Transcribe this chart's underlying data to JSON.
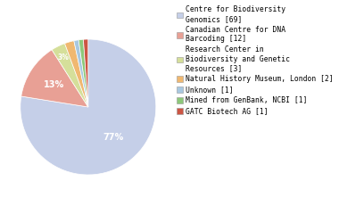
{
  "labels": [
    "Centre for Biodiversity\nGenomics [69]",
    "Canadian Centre for DNA\nBarcoding [12]",
    "Research Center in\nBiodiversity and Genetic\nResources [3]",
    "Natural History Museum, London [2]",
    "Unknown [1]",
    "Mined from GenBank, NCBI [1]",
    "GATC Biotech AG [1]"
  ],
  "values": [
    69,
    12,
    3,
    2,
    1,
    1,
    1
  ],
  "colors": [
    "#c5cfe8",
    "#e8a095",
    "#d5df9a",
    "#f0b870",
    "#a8c8e0",
    "#8dc87a",
    "#cc5544"
  ],
  "pct_labels": [
    "77%",
    "13%",
    "3%",
    "2%",
    "1%",
    "1%",
    "1%"
  ],
  "legend_labels": [
    "Centre for Biodiversity\nGenomics [69]",
    "Canadian Centre for DNA\nBarcoding [12]",
    "Research Center in\nBiodiversity and Genetic\nResources [3]",
    "Natural History Museum, London [2]",
    "Unknown [1]",
    "Mined from GenBank, NCBI [1]",
    "GATC Biotech AG [1]"
  ],
  "pie_label_indices": [
    0,
    1,
    2
  ],
  "pie_label_radii": [
    0.58,
    0.6,
    0.82
  ],
  "pie_label_fontsizes": [
    7,
    7,
    5.5
  ],
  "legend_fontsize": 5.8,
  "background_color": "#ffffff"
}
